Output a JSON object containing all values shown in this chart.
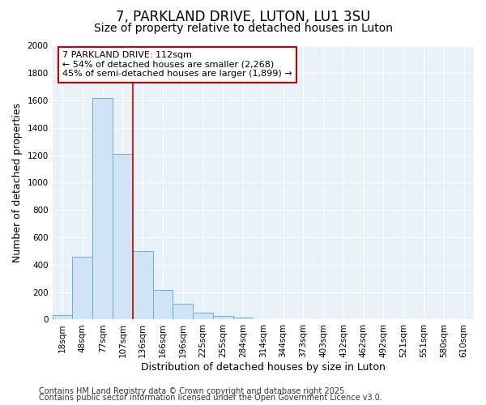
{
  "title": "7, PARKLAND DRIVE, LUTON, LU1 3SU",
  "subtitle": "Size of property relative to detached houses in Luton",
  "xlabel": "Distribution of detached houses by size in Luton",
  "ylabel": "Number of detached properties",
  "categories": [
    "18sqm",
    "48sqm",
    "77sqm",
    "107sqm",
    "136sqm",
    "166sqm",
    "196sqm",
    "225sqm",
    "255sqm",
    "284sqm",
    "314sqm",
    "344sqm",
    "373sqm",
    "403sqm",
    "432sqm",
    "462sqm",
    "492sqm",
    "521sqm",
    "551sqm",
    "580sqm",
    "610sqm"
  ],
  "values": [
    30,
    460,
    1620,
    1210,
    500,
    215,
    115,
    50,
    25,
    15,
    0,
    0,
    0,
    0,
    0,
    0,
    0,
    0,
    0,
    0,
    0
  ],
  "bar_color": "#d0e4f5",
  "bar_edge_color": "#6aaed6",
  "red_line_x": 3.5,
  "annotation_line1": "7 PARKLAND DRIVE: 112sqm",
  "annotation_line2": "← 54% of detached houses are smaller (2,268)",
  "annotation_line3": "45% of semi-detached houses are larger (1,899) →",
  "annotation_box_facecolor": "#ffffff",
  "annotation_box_edgecolor": "#cc0000",
  "red_line_color": "#cc0000",
  "ylim": [
    0,
    2000
  ],
  "yticks": [
    0,
    200,
    400,
    600,
    800,
    1000,
    1200,
    1400,
    1600,
    1800,
    2000
  ],
  "footer1": "Contains HM Land Registry data © Crown copyright and database right 2025.",
  "footer2": "Contains public sector information licensed under the Open Government Licence v3.0.",
  "fig_bg_color": "#ffffff",
  "plot_bg_color": "#e8f0f8",
  "grid_color": "#ffffff",
  "title_fontsize": 12,
  "subtitle_fontsize": 10,
  "axis_label_fontsize": 9,
  "tick_fontsize": 7.5,
  "annot_fontsize": 8,
  "footer_fontsize": 7
}
